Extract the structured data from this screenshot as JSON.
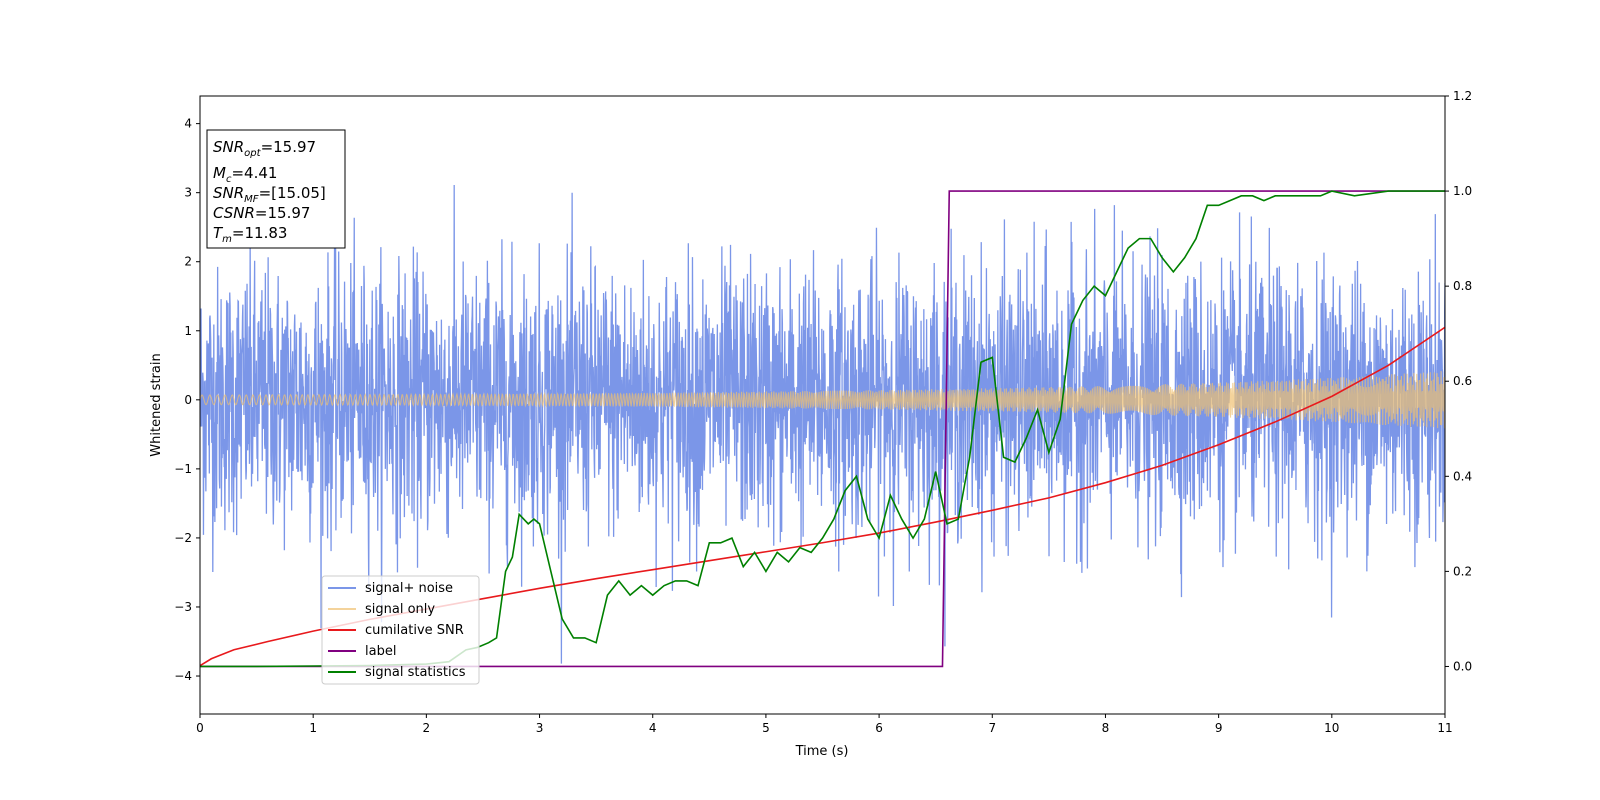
{
  "chart_data": {
    "type": "line",
    "title": "",
    "xlabel": "Time (s)",
    "ylabel": "Whitened strain",
    "xlim": [
      0,
      11
    ],
    "ylim": [
      -4.55,
      4.4
    ],
    "y2lim": [
      -0.1,
      1.2
    ],
    "grid": false,
    "x_ticks": [
      0,
      1,
      2,
      3,
      4,
      5,
      6,
      7,
      8,
      9,
      10,
      11
    ],
    "y_ticks": [
      -4,
      -3,
      -2,
      -1,
      0,
      1,
      2,
      3,
      4
    ],
    "y2_ticks": [
      0.0,
      0.2,
      0.4,
      0.6,
      0.8,
      1.0,
      1.2
    ],
    "legend_position": "lower-left",
    "info_box": [
      {
        "sym": "SNR",
        "sub": "opt",
        "text": "=15.97"
      },
      {
        "sym": "M",
        "sub": "c",
        "text": "=4.41"
      },
      {
        "sym": "SNR",
        "sub": "MF",
        "text": "=[15.05]"
      },
      {
        "sym": "CSNR",
        "sub": "",
        "text": "=15.97"
      },
      {
        "sym": "T",
        "sub": "m",
        "text": "=11.83"
      }
    ],
    "series": [
      {
        "name": "signal+ noise",
        "color": "#7b96e8",
        "axis": "left",
        "description": "noisy whitened strain, roughly Gaussian with std ~1, spanning about -4.1 to 4.0",
        "envelope": {
          "t": [
            0,
            11
          ],
          "core_half_width": 1.1,
          "spike_range": [
            -4.1,
            4.0
          ]
        }
      },
      {
        "name": "signal only",
        "color": "#f0c070",
        "axis": "left",
        "description": "chirp signal amplitude growing with time",
        "amplitude": {
          "t": [
            0,
            2,
            4,
            6,
            7,
            8,
            9,
            10,
            11
          ],
          "a": [
            0.07,
            0.08,
            0.1,
            0.14,
            0.17,
            0.2,
            0.25,
            0.32,
            0.42
          ]
        }
      },
      {
        "name": "cumilative SNR",
        "color": "#e8191c",
        "axis": "left",
        "x": [
          0,
          0.1,
          0.3,
          0.6,
          1,
          1.5,
          2,
          2.5,
          3,
          3.5,
          4,
          4.5,
          5,
          5.5,
          6,
          6.5,
          7,
          7.5,
          8,
          8.5,
          9,
          9.5,
          10,
          10.5,
          11
        ],
        "y": [
          -3.85,
          -3.75,
          -3.62,
          -3.5,
          -3.35,
          -3.18,
          -3.03,
          -2.88,
          -2.73,
          -2.59,
          -2.46,
          -2.33,
          -2.2,
          -2.07,
          -1.93,
          -1.77,
          -1.6,
          -1.42,
          -1.2,
          -0.95,
          -0.65,
          -0.32,
          0.05,
          0.5,
          1.05
        ]
      },
      {
        "name": "label",
        "color": "#800080",
        "axis": "right",
        "x": [
          0,
          6.56,
          6.62,
          11
        ],
        "y": [
          0.0,
          0.0,
          1.0,
          1.0
        ]
      },
      {
        "name": "signal statistics",
        "color": "#008000",
        "axis": "right",
        "x": [
          0,
          0.5,
          1,
          1.5,
          2,
          2.2,
          2.35,
          2.45,
          2.55,
          2.62,
          2.7,
          2.76,
          2.82,
          2.9,
          2.95,
          3.0,
          3.1,
          3.2,
          3.3,
          3.4,
          3.5,
          3.6,
          3.7,
          3.8,
          3.9,
          4.0,
          4.1,
          4.2,
          4.3,
          4.4,
          4.5,
          4.6,
          4.7,
          4.8,
          4.9,
          5.0,
          5.1,
          5.2,
          5.3,
          5.4,
          5.5,
          5.6,
          5.7,
          5.8,
          5.9,
          6.0,
          6.1,
          6.2,
          6.3,
          6.4,
          6.5,
          6.6,
          6.7,
          6.8,
          6.9,
          7.0,
          7.1,
          7.2,
          7.3,
          7.4,
          7.5,
          7.6,
          7.7,
          7.8,
          7.9,
          8.0,
          8.1,
          8.2,
          8.3,
          8.4,
          8.5,
          8.6,
          8.7,
          8.8,
          8.9,
          9.0,
          9.1,
          9.2,
          9.3,
          9.4,
          9.5,
          9.6,
          9.7,
          9.8,
          9.9,
          10.0,
          10.2,
          10.5,
          11
        ],
        "y": [
          0.0,
          0.0,
          0.001,
          0.002,
          0.005,
          0.01,
          0.035,
          0.04,
          0.05,
          0.06,
          0.2,
          0.23,
          0.32,
          0.3,
          0.31,
          0.3,
          0.2,
          0.1,
          0.06,
          0.06,
          0.05,
          0.15,
          0.18,
          0.15,
          0.17,
          0.15,
          0.17,
          0.18,
          0.18,
          0.17,
          0.26,
          0.26,
          0.27,
          0.21,
          0.24,
          0.2,
          0.24,
          0.22,
          0.25,
          0.24,
          0.27,
          0.31,
          0.37,
          0.4,
          0.31,
          0.27,
          0.36,
          0.31,
          0.27,
          0.31,
          0.41,
          0.3,
          0.31,
          0.44,
          0.64,
          0.65,
          0.44,
          0.43,
          0.48,
          0.54,
          0.45,
          0.52,
          0.72,
          0.77,
          0.8,
          0.78,
          0.83,
          0.88,
          0.9,
          0.9,
          0.86,
          0.83,
          0.86,
          0.9,
          0.97,
          0.97,
          0.98,
          0.99,
          0.99,
          0.98,
          0.99,
          0.99,
          0.99,
          0.99,
          0.99,
          1.0,
          0.99,
          1.0,
          1.0
        ]
      }
    ]
  }
}
